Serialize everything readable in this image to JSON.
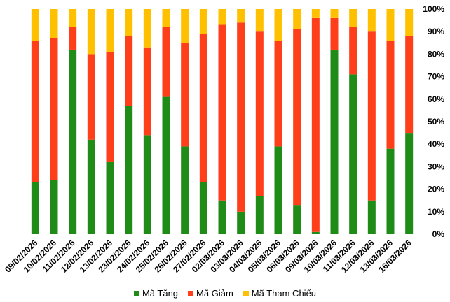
{
  "chart_data": {
    "type": "bar",
    "stacked": true,
    "categories": [
      "09/02/2026",
      "10/02/2026",
      "11/02/2026",
      "12/02/2026",
      "13/02/2026",
      "23/02/2026",
      "24/02/2026",
      "25/02/2026",
      "26/02/2026",
      "27/02/2026",
      "02/03/2026",
      "03/03/2026",
      "04/03/2026",
      "05/03/2026",
      "06/03/2026",
      "09/03/2026",
      "10/03/2026",
      "11/03/2026",
      "12/03/2026",
      "13/03/2026",
      "16/03/2026"
    ],
    "series": [
      {
        "name": "Mã Tăng",
        "color": "#1E8C17",
        "values": [
          23,
          24,
          82,
          42,
          32,
          57,
          44,
          61,
          39,
          23,
          15,
          10,
          17,
          39,
          13,
          1,
          82,
          71,
          15,
          38,
          45
        ]
      },
      {
        "name": "Mã Giảm",
        "color": "#FF3F1A",
        "values": [
          63,
          63,
          10,
          38,
          49,
          31,
          39,
          31,
          46,
          66,
          78,
          84,
          73,
          47,
          78,
          95,
          14,
          21,
          75,
          48,
          43
        ]
      },
      {
        "name": "Mã Tham Chiếu",
        "color": "#FFC000",
        "values": [
          14,
          13,
          8,
          20,
          19,
          12,
          17,
          8,
          15,
          11,
          7,
          6,
          10,
          14,
          9,
          4,
          4,
          8,
          10,
          14,
          12
        ]
      }
    ],
    "y_ticks": [
      "0%",
      "10%",
      "20%",
      "30%",
      "40%",
      "50%",
      "60%",
      "70%",
      "80%",
      "90%",
      "100%"
    ],
    "ylim": [
      0,
      100
    ],
    "y_axis_side": "right",
    "legend_position": "bottom",
    "title": "",
    "xlabel": "",
    "ylabel": ""
  }
}
